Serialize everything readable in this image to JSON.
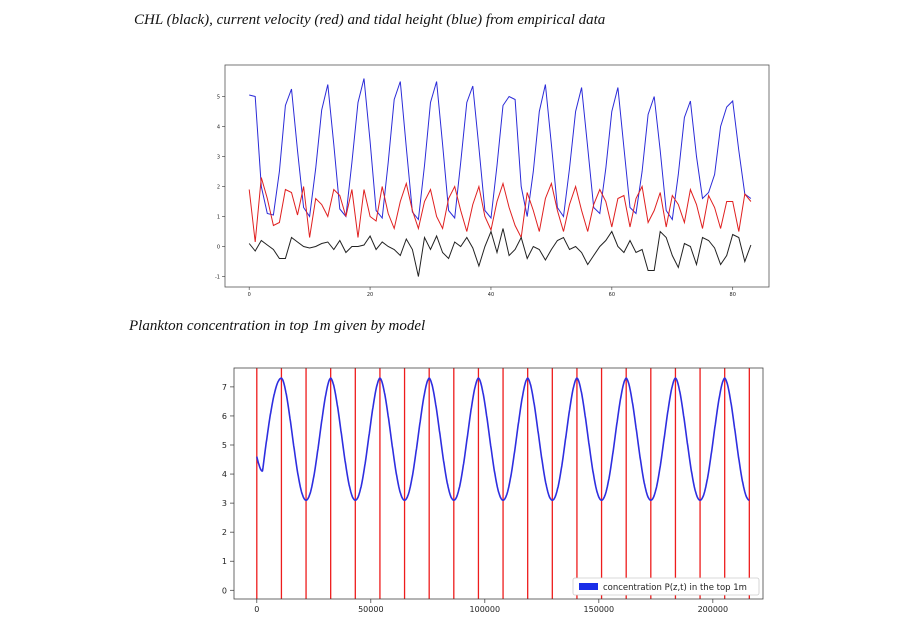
{
  "captions": {
    "top": "CHL (black), current velocity (red) and tidal height (blue) from empirical data",
    "bottom": "Plankton concentration in top 1m given by model"
  },
  "chart_data": [
    {
      "type": "line",
      "xlim": [
        -4,
        86
      ],
      "ylim": [
        -1.35,
        6.05
      ],
      "xticks": [
        "0",
        "20",
        "40",
        "60",
        "80"
      ],
      "yticks": [
        "-1",
        "0",
        "1",
        "2",
        "3",
        "4",
        "5"
      ],
      "grid": false,
      "series": [
        {
          "color": "#2b2bd8",
          "x": [
            0,
            1,
            2,
            3,
            4,
            5,
            6,
            7,
            8,
            9,
            10,
            11,
            12,
            13,
            14,
            15,
            16,
            17,
            18,
            19,
            20,
            21,
            22,
            23,
            24,
            25,
            26,
            27,
            28,
            29,
            30,
            31,
            32,
            33,
            34,
            35,
            36,
            37,
            38,
            39,
            40,
            41,
            42,
            43,
            44,
            45,
            46,
            47,
            48,
            49,
            50,
            51,
            52,
            53,
            54,
            55,
            56,
            57,
            58,
            59,
            60,
            61,
            62,
            63,
            64,
            65,
            66,
            67,
            68,
            69,
            70,
            71,
            72,
            73,
            74,
            75,
            76,
            77,
            78,
            79,
            80,
            81,
            82,
            83
          ],
          "values": [
            5.05,
            5.0,
            2.0,
            1.1,
            1.05,
            2.5,
            4.7,
            5.25,
            3.2,
            1.3,
            1.0,
            2.6,
            4.55,
            5.4,
            3.4,
            1.25,
            1.0,
            2.8,
            4.8,
            5.6,
            3.5,
            1.2,
            0.95,
            2.8,
            4.9,
            5.5,
            3.3,
            1.15,
            0.9,
            2.7,
            4.8,
            5.5,
            3.4,
            1.2,
            0.95,
            2.8,
            4.8,
            5.35,
            3.3,
            1.2,
            0.95,
            2.7,
            4.7,
            5.0,
            4.9,
            2.0,
            1.0,
            2.5,
            4.5,
            5.4,
            3.4,
            1.3,
            1.0,
            2.6,
            4.5,
            5.3,
            3.3,
            1.3,
            1.1,
            2.6,
            4.5,
            5.3,
            3.3,
            1.3,
            1.1,
            2.5,
            4.4,
            5.0,
            3.2,
            1.2,
            0.9,
            2.4,
            4.3,
            4.85,
            3.0,
            1.6,
            1.8,
            2.4,
            4.0,
            4.65,
            4.85,
            3.2,
            1.75,
            1.6
          ]
        },
        {
          "color": "#e02020",
          "x": [
            0,
            1,
            2,
            3,
            4,
            5,
            6,
            7,
            8,
            9,
            10,
            11,
            12,
            13,
            14,
            15,
            16,
            17,
            18,
            19,
            20,
            21,
            22,
            23,
            24,
            25,
            26,
            27,
            28,
            29,
            30,
            31,
            32,
            33,
            34,
            35,
            36,
            37,
            38,
            39,
            40,
            41,
            42,
            43,
            44,
            45,
            46,
            47,
            48,
            49,
            50,
            51,
            52,
            53,
            54,
            55,
            56,
            57,
            58,
            59,
            60,
            61,
            62,
            63,
            64,
            65,
            66,
            67,
            68,
            69,
            70,
            71,
            72,
            73,
            74,
            75,
            76,
            77,
            78,
            79,
            80,
            81,
            82,
            83
          ],
          "values": [
            1.9,
            0.15,
            2.3,
            1.6,
            0.7,
            0.8,
            1.9,
            1.8,
            1.05,
            2.0,
            0.3,
            1.6,
            1.4,
            1.0,
            1.9,
            1.7,
            1.0,
            1.9,
            0.3,
            1.9,
            1.0,
            0.85,
            2.0,
            1.1,
            0.6,
            1.5,
            2.1,
            1.2,
            0.6,
            1.5,
            1.9,
            1.0,
            0.6,
            1.6,
            2.0,
            1.2,
            0.5,
            1.4,
            2.0,
            1.0,
            0.55,
            1.5,
            2.1,
            1.3,
            0.7,
            0.3,
            1.8,
            1.2,
            0.5,
            1.6,
            2.1,
            1.2,
            0.5,
            1.4,
            2.0,
            1.2,
            0.5,
            1.4,
            1.9,
            1.5,
            0.65,
            1.6,
            1.7,
            0.65,
            1.6,
            2.0,
            0.8,
            1.2,
            1.8,
            0.65,
            1.7,
            1.4,
            0.8,
            1.9,
            1.4,
            0.6,
            1.7,
            1.3,
            0.6,
            1.5,
            1.5,
            0.5,
            1.75,
            1.5
          ]
        },
        {
          "color": "#222222",
          "x": [
            0,
            1,
            2,
            3,
            4,
            5,
            6,
            7,
            8,
            9,
            10,
            11,
            12,
            13,
            14,
            15,
            16,
            17,
            18,
            19,
            20,
            21,
            22,
            23,
            24,
            25,
            26,
            27,
            28,
            29,
            30,
            31,
            32,
            33,
            34,
            35,
            36,
            37,
            38,
            39,
            40,
            41,
            42,
            43,
            44,
            45,
            46,
            47,
            48,
            49,
            50,
            51,
            52,
            53,
            54,
            55,
            56,
            57,
            58,
            59,
            60,
            61,
            62,
            63,
            64,
            65,
            66,
            67,
            68,
            69,
            70,
            71,
            72,
            73,
            74,
            75,
            76,
            77,
            78,
            79,
            80,
            81,
            82,
            83
          ],
          "values": [
            0.1,
            -0.15,
            0.2,
            0.05,
            -0.1,
            -0.4,
            -0.4,
            0.3,
            0.15,
            0.0,
            -0.05,
            0.0,
            0.1,
            0.15,
            -0.1,
            0.2,
            -0.2,
            0.0,
            0.0,
            0.05,
            0.35,
            -0.1,
            0.15,
            0.0,
            -0.1,
            -0.3,
            0.25,
            -0.1,
            -1.0,
            0.3,
            -0.1,
            0.35,
            -0.2,
            -0.4,
            0.15,
            0.0,
            0.3,
            -0.05,
            -0.65,
            0.0,
            0.5,
            -0.2,
            0.6,
            -0.3,
            -0.1,
            0.3,
            -0.4,
            0.0,
            -0.1,
            -0.45,
            -0.1,
            0.2,
            0.3,
            -0.1,
            0.0,
            -0.2,
            -0.6,
            -0.3,
            0.0,
            0.2,
            0.5,
            0.0,
            -0.2,
            0.2,
            -0.2,
            -0.1,
            -0.8,
            -0.8,
            0.5,
            0.3,
            -0.3,
            -0.7,
            0.1,
            0.0,
            -0.6,
            0.3,
            0.2,
            -0.05,
            -0.6,
            -0.3,
            0.4,
            0.3,
            -0.5,
            0.05
          ]
        }
      ]
    },
    {
      "type": "line",
      "xlim": [
        -10000,
        222000
      ],
      "ylim": [
        -0.3,
        7.65
      ],
      "xticks": [
        0,
        50000,
        100000,
        150000,
        200000
      ],
      "xtick_labels": [
        "0",
        "50000",
        "100000",
        "150000",
        "200000"
      ],
      "yticks": [
        "0",
        "1",
        "2",
        "3",
        "4",
        "5",
        "6",
        "7"
      ],
      "grid": false,
      "period": 21600,
      "x_end": 216000,
      "curve_max": 7.3,
      "curve_min": 3.1,
      "curve_start": 4.6,
      "first_trough": 4.1,
      "curve_color": "#2e2ee0",
      "vline_color": "#ee1c1c",
      "vlines_x": [
        0,
        10800,
        21600,
        32400,
        43200,
        54000,
        64800,
        75600,
        86400,
        97200,
        108000,
        118800,
        129600,
        140400,
        151200,
        162000,
        172800,
        183600,
        194400,
        205200,
        216000
      ],
      "legend": {
        "label": "concentration P(z,t) in the top 1m",
        "location": "lower right",
        "color": "#1a2ee8"
      }
    }
  ]
}
